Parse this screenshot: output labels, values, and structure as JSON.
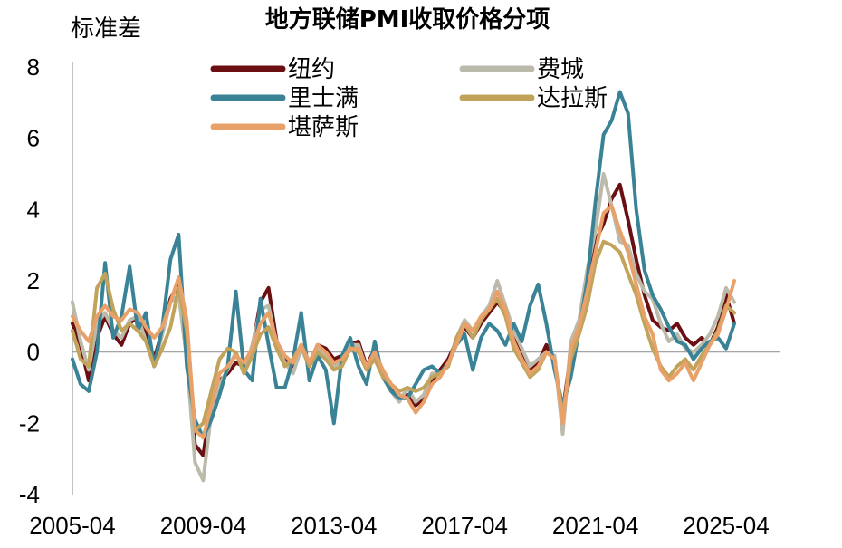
{
  "chart_data": {
    "type": "line",
    "title": "地方联储PMI收取价格分项",
    "unit_label": "标准差",
    "xlabel": "",
    "ylabel": "",
    "x_ticks": [
      "2005-04",
      "2009-04",
      "2013-04",
      "2017-04",
      "2021-04",
      "2025-04"
    ],
    "y_ticks": [
      "8",
      "6",
      "4",
      "2",
      "0",
      "-2",
      "-4"
    ],
    "ylim": [
      -4,
      8
    ],
    "xlim": [
      "2005-04",
      "2025-04"
    ],
    "grid": false,
    "legend_position": "top",
    "x": [
      "2005-04",
      "2005-07",
      "2005-10",
      "2006-01",
      "2006-04",
      "2006-07",
      "2006-10",
      "2007-01",
      "2007-04",
      "2007-07",
      "2007-10",
      "2008-01",
      "2008-04",
      "2008-07",
      "2008-10",
      "2009-01",
      "2009-04",
      "2009-07",
      "2009-10",
      "2010-01",
      "2010-04",
      "2010-07",
      "2010-10",
      "2011-01",
      "2011-04",
      "2011-07",
      "2011-10",
      "2012-01",
      "2012-04",
      "2012-07",
      "2012-10",
      "2013-01",
      "2013-04",
      "2013-07",
      "2013-10",
      "2014-01",
      "2014-04",
      "2014-07",
      "2014-10",
      "2015-01",
      "2015-04",
      "2015-07",
      "2015-10",
      "2016-01",
      "2016-04",
      "2016-07",
      "2016-10",
      "2017-01",
      "2017-04",
      "2017-07",
      "2017-10",
      "2018-01",
      "2018-04",
      "2018-07",
      "2018-10",
      "2019-01",
      "2019-04",
      "2019-07",
      "2019-10",
      "2020-01",
      "2020-04",
      "2020-07",
      "2020-10",
      "2021-01",
      "2021-04",
      "2021-07",
      "2021-10",
      "2022-01",
      "2022-04",
      "2022-07",
      "2022-10",
      "2023-01",
      "2023-04",
      "2023-07",
      "2023-10",
      "2024-01",
      "2024-04",
      "2024-07",
      "2024-10",
      "2025-01",
      "2025-04",
      "2025-07"
    ],
    "series": [
      {
        "name": "纽约",
        "color": "#6b0f13",
        "values": [
          0.8,
          0.2,
          -0.8,
          0.4,
          1.0,
          0.5,
          0.2,
          0.8,
          1.0,
          0.6,
          -0.2,
          0.6,
          1.5,
          1.9,
          0.3,
          -2.6,
          -2.9,
          -1.4,
          -0.8,
          -0.6,
          -0.3,
          -0.4,
          0.1,
          1.4,
          1.8,
          0.3,
          -0.2,
          -0.4,
          0.2,
          -0.3,
          0.2,
          0.1,
          -0.2,
          -0.1,
          0.2,
          0.3,
          -0.4,
          0.1,
          -0.6,
          -1.0,
          -1.3,
          -1.2,
          -1.5,
          -1.3,
          -0.8,
          -0.5,
          -0.2,
          0.3,
          0.7,
          0.4,
          0.8,
          1.1,
          1.4,
          1.1,
          0.4,
          -0.1,
          -0.5,
          -0.3,
          0.2,
          -0.3,
          -1.7,
          0.0,
          0.6,
          1.8,
          3.1,
          3.6,
          4.3,
          4.7,
          3.7,
          2.6,
          1.6,
          0.9,
          0.7,
          0.6,
          0.8,
          0.4,
          0.2,
          0.4,
          0.2,
          0.7,
          1.6,
          0.8
        ]
      },
      {
        "name": "费城",
        "color": "#bcbaaa",
        "values": [
          1.4,
          0.3,
          -0.5,
          0.8,
          1.1,
          0.6,
          0.4,
          0.9,
          1.0,
          0.3,
          -0.4,
          0.5,
          1.4,
          1.6,
          -0.2,
          -3.1,
          -3.6,
          -1.7,
          -0.9,
          -0.5,
          0.0,
          -0.6,
          0.2,
          1.2,
          1.3,
          0.2,
          -0.3,
          -0.6,
          0.1,
          -0.4,
          0.1,
          -0.1,
          -0.4,
          -0.3,
          0.2,
          0.2,
          -0.5,
          0.0,
          -0.7,
          -1.1,
          -1.4,
          -1.0,
          -1.4,
          -1.2,
          -0.6,
          -0.6,
          -0.4,
          0.4,
          0.9,
          0.6,
          1.0,
          1.3,
          2.0,
          1.3,
          0.6,
          0.1,
          -0.4,
          -0.2,
          0.0,
          -0.1,
          -2.3,
          0.3,
          0.9,
          2.3,
          3.4,
          5.0,
          4.1,
          3.1,
          3.0,
          2.2,
          1.7,
          1.5,
          0.8,
          0.3,
          0.5,
          0.1,
          0.0,
          0.2,
          0.5,
          1.0,
          1.8,
          1.4
        ]
      },
      {
        "name": "里士满",
        "color": "#3a8396",
        "values": [
          -0.2,
          -0.9,
          -1.1,
          0.0,
          2.5,
          0.4,
          1.0,
          2.4,
          0.6,
          1.1,
          -0.4,
          0.7,
          2.6,
          3.3,
          -0.4,
          -1.9,
          -2.4,
          -1.9,
          -1.2,
          -0.4,
          1.7,
          -0.5,
          -0.8,
          1.5,
          0.2,
          -1.0,
          -1.0,
          -0.2,
          1.1,
          -0.8,
          -0.1,
          -0.5,
          -2.0,
          -0.1,
          0.4,
          -0.4,
          -0.9,
          0.3,
          -0.7,
          -1.1,
          -1.3,
          -1.3,
          -0.9,
          -0.5,
          -0.4,
          -0.6,
          -0.3,
          0.2,
          0.5,
          -0.5,
          0.4,
          0.8,
          0.6,
          0.2,
          0.8,
          0.3,
          1.3,
          1.9,
          0.8,
          -0.5,
          -1.5,
          -0.7,
          0.6,
          2.0,
          4.2,
          6.1,
          6.5,
          7.3,
          6.7,
          4.0,
          2.3,
          1.6,
          1.2,
          0.7,
          0.3,
          0.2,
          -0.2,
          0.1,
          0.3,
          0.4,
          0.1,
          0.8
        ]
      },
      {
        "name": "达拉斯",
        "color": "#c2a35c",
        "values": [
          0.6,
          -0.2,
          -0.4,
          1.8,
          2.2,
          1.2,
          0.6,
          0.8,
          0.6,
          0.3,
          -0.4,
          0.1,
          0.7,
          1.8,
          0.6,
          -2.2,
          -2.0,
          -1.1,
          -0.2,
          0.1,
          0.0,
          -0.6,
          -0.1,
          0.5,
          0.7,
          0.1,
          -0.4,
          -0.2,
          0.2,
          -0.4,
          0.0,
          -0.2,
          -0.5,
          -0.4,
          0.1,
          0.0,
          -0.5,
          -0.2,
          -0.7,
          -0.9,
          -1.1,
          -1.0,
          -1.1,
          -1.0,
          -0.7,
          -0.6,
          -0.4,
          0.4,
          0.8,
          0.4,
          0.9,
          1.2,
          1.5,
          1.0,
          0.1,
          -0.3,
          -0.7,
          -0.5,
          0.0,
          -0.2,
          -1.8,
          -0.2,
          0.5,
          1.3,
          2.5,
          3.1,
          3.0,
          2.8,
          2.2,
          1.6,
          0.8,
          0.1,
          -0.4,
          -0.7,
          -0.4,
          -0.2,
          -0.5,
          -0.1,
          0.2,
          0.6,
          1.3,
          1.1
        ]
      },
      {
        "name": "堪萨斯",
        "color": "#e9a16a",
        "values": [
          1.0,
          0.6,
          0.3,
          1.0,
          1.3,
          1.0,
          0.9,
          1.2,
          1.1,
          0.7,
          0.4,
          0.7,
          1.4,
          2.1,
          0.9,
          -2.2,
          -2.4,
          -1.5,
          -0.6,
          -0.4,
          -0.1,
          -0.3,
          0.1,
          0.8,
          1.1,
          0.3,
          -0.1,
          -0.3,
          0.2,
          -0.3,
          0.2,
          0.0,
          -0.3,
          -0.2,
          0.1,
          0.1,
          -0.4,
          0.0,
          -0.5,
          -0.9,
          -1.2,
          -1.3,
          -1.7,
          -1.4,
          -0.9,
          -0.7,
          -0.3,
          0.2,
          0.8,
          0.6,
          1.0,
          1.2,
          1.7,
          1.2,
          0.3,
          -0.2,
          -0.6,
          -0.4,
          0.0,
          -0.2,
          -2.0,
          0.1,
          0.7,
          1.7,
          2.8,
          3.9,
          4.1,
          3.4,
          2.8,
          1.9,
          1.0,
          0.5,
          -0.5,
          -0.8,
          -0.6,
          -0.3,
          -0.8,
          -0.3,
          0.2,
          0.5,
          1.2,
          2.0
        ]
      }
    ]
  }
}
